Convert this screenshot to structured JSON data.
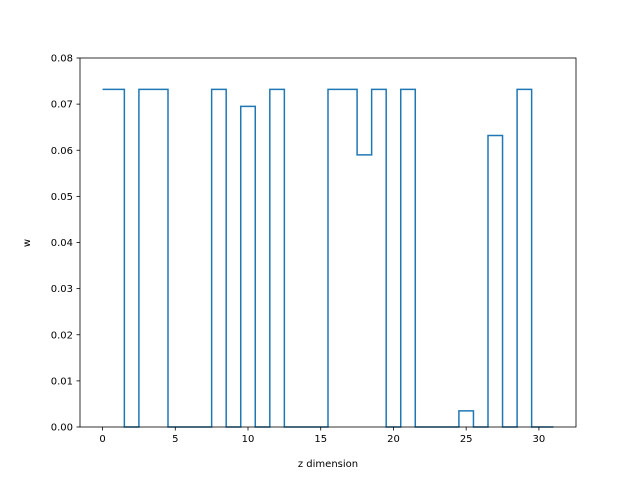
{
  "chart_data": {
    "type": "line",
    "drawstyle": "steps-mid",
    "title": "",
    "xlabel": "z dimension",
    "ylabel": "w",
    "xlim": [
      -1.55,
      32.55
    ],
    "ylim": [
      0,
      0.08
    ],
    "grid": false,
    "x_ticks": [
      0,
      5,
      10,
      15,
      20,
      25,
      30
    ],
    "y_ticks": [
      0.0,
      0.01,
      0.02,
      0.03,
      0.04,
      0.05,
      0.06,
      0.07,
      0.08
    ],
    "x_tick_labels": [
      "0",
      "5",
      "10",
      "15",
      "20",
      "25",
      "30"
    ],
    "y_tick_labels": [
      "0.00",
      "0.01",
      "0.02",
      "0.03",
      "0.04",
      "0.05",
      "0.06",
      "0.07",
      "0.08"
    ],
    "series": [
      {
        "color": "#1f77b4",
        "x": [
          0,
          1,
          2,
          3,
          4,
          5,
          6,
          7,
          8,
          9,
          10,
          11,
          12,
          13,
          14,
          15,
          16,
          17,
          18,
          19,
          20,
          21,
          22,
          23,
          24,
          25,
          26,
          27,
          28,
          29,
          30,
          31
        ],
        "y": [
          0.0732,
          0.0732,
          0,
          0.0732,
          0.0732,
          0,
          0,
          0,
          0.0732,
          0,
          0.0695,
          0,
          0.0732,
          0,
          0,
          0,
          0.0732,
          0.0732,
          0.059,
          0.0732,
          0,
          0.0732,
          0,
          0,
          0,
          0.0035,
          0,
          0.0632,
          0,
          0.0732,
          0,
          0
        ]
      }
    ]
  }
}
